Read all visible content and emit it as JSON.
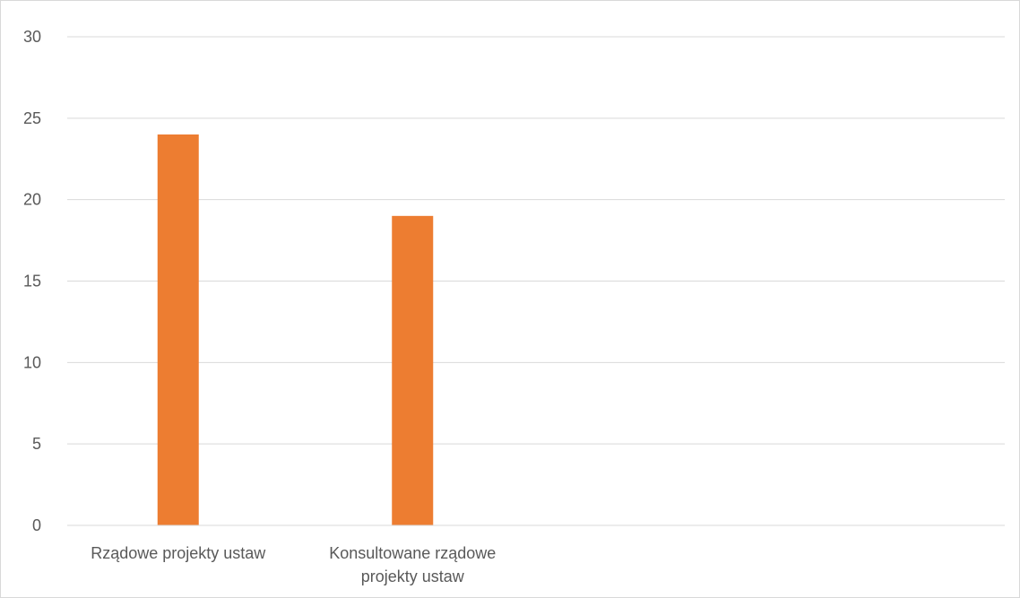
{
  "chart_data": {
    "type": "bar",
    "categories": [
      "Rządowe projekty ustaw",
      "Konsultowane rządowe projekty ustaw"
    ],
    "category_label_lines": [
      [
        "Rządowe projekty ustaw"
      ],
      [
        "Konsultowane rządowe",
        "projekty ustaw"
      ]
    ],
    "series": [
      {
        "values": [
          24,
          19
        ]
      }
    ],
    "ylim": [
      0,
      30
    ],
    "yticks": [
      0,
      5,
      10,
      15,
      20,
      25,
      30
    ],
    "grid": true,
    "legend": "none",
    "bar_color": "#ED7D31",
    "grid_color": "#D9D9D9",
    "axis_color": "#D9D9D9",
    "label_color": "#595959",
    "slot_count": 4
  }
}
